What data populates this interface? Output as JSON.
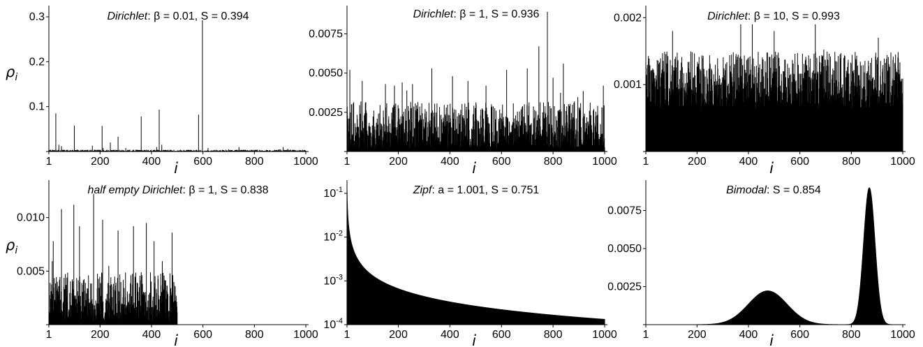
{
  "figure": {
    "ylabel": "ρ",
    "ylabel_sub": "i",
    "xlabel": "i"
  },
  "chart_data": [
    {
      "type": "bar",
      "title": "Dirichlet: β = 0.01, S = 0.394",
      "title_parts": {
        "name": "Dirichlet",
        "params": ": β = 0.01, S = 0.394"
      },
      "xlabel": "i",
      "ylabel": "ρ_i",
      "xlim": [
        1,
        1000
      ],
      "ylim": [
        0,
        0.325
      ],
      "yscale": "linear",
      "xticks": [
        1,
        200,
        400,
        600,
        800,
        1000
      ],
      "yticks": [
        0.1,
        0.2,
        0.3
      ],
      "ytick_labels": [
        "0.1",
        "0.2",
        "0.3"
      ],
      "peaks": [
        {
          "x": 28,
          "y": 0.085
        },
        {
          "x": 40,
          "y": 0.015
        },
        {
          "x": 50,
          "y": 0.012
        },
        {
          "x": 100,
          "y": 0.058
        },
        {
          "x": 170,
          "y": 0.013
        },
        {
          "x": 208,
          "y": 0.057
        },
        {
          "x": 212,
          "y": 0.008
        },
        {
          "x": 240,
          "y": 0.02
        },
        {
          "x": 270,
          "y": 0.033
        },
        {
          "x": 300,
          "y": 0.008
        },
        {
          "x": 360,
          "y": 0.078
        },
        {
          "x": 420,
          "y": 0.01
        },
        {
          "x": 430,
          "y": 0.093
        },
        {
          "x": 440,
          "y": 0.015
        },
        {
          "x": 583,
          "y": 0.082
        },
        {
          "x": 598,
          "y": 0.296
        },
        {
          "x": 620,
          "y": 0.008
        },
        {
          "x": 700,
          "y": 0.005
        },
        {
          "x": 740,
          "y": 0.01
        },
        {
          "x": 900,
          "y": 0.005
        },
        {
          "x": 912,
          "y": 0.01
        },
        {
          "x": 930,
          "y": 0.006
        }
      ],
      "noise": {
        "count": 1000,
        "baseline": 0.0,
        "amplitude": 0.004
      }
    },
    {
      "type": "bar",
      "title": "Dirichlet: β = 1, S = 0.936",
      "title_parts": {
        "name": "Dirichlet",
        "params": ": β = 1, S = 0.936"
      },
      "xlabel": "i",
      "ylabel": "ρ_i",
      "xlim": [
        1,
        1000
      ],
      "ylim": [
        0,
        0.0093
      ],
      "yscale": "linear",
      "xticks": [
        1,
        200,
        400,
        600,
        800,
        1000
      ],
      "yticks": [
        0.0025,
        0.005,
        0.0075
      ],
      "ytick_labels": [
        "0.0025",
        "0.0050",
        "0.0075"
      ],
      "peaks": [
        {
          "x": 12,
          "y": 0.0052
        },
        {
          "x": 60,
          "y": 0.0045
        },
        {
          "x": 150,
          "y": 0.0043
        },
        {
          "x": 185,
          "y": 0.0042
        },
        {
          "x": 215,
          "y": 0.0044
        },
        {
          "x": 255,
          "y": 0.0043
        },
        {
          "x": 330,
          "y": 0.0053
        },
        {
          "x": 410,
          "y": 0.0048
        },
        {
          "x": 470,
          "y": 0.0045
        },
        {
          "x": 540,
          "y": 0.0042
        },
        {
          "x": 620,
          "y": 0.0052
        },
        {
          "x": 700,
          "y": 0.0053
        },
        {
          "x": 745,
          "y": 0.0067
        },
        {
          "x": 778,
          "y": 0.0089
        },
        {
          "x": 800,
          "y": 0.0047
        },
        {
          "x": 840,
          "y": 0.0056
        },
        {
          "x": 995,
          "y": 0.0042
        }
      ],
      "noise": {
        "count": 1000,
        "baseline": 0.0002,
        "amplitude": 0.003
      }
    },
    {
      "type": "bar",
      "title": "Dirichlet: β = 10, S = 0.993",
      "title_parts": {
        "name": "Dirichlet",
        "params": ": β = 10, S = 0.993"
      },
      "xlabel": "i",
      "ylabel": "ρ_i",
      "xlim": [
        1,
        1000
      ],
      "ylim": [
        0,
        0.00218
      ],
      "yscale": "linear",
      "xticks": [
        1,
        200,
        400,
        600,
        800,
        1000
      ],
      "yticks": [
        0.001,
        0.002
      ],
      "ytick_labels": [
        "0.001",
        "0.002"
      ],
      "peaks": [
        {
          "x": 105,
          "y": 0.0018
        },
        {
          "x": 370,
          "y": 0.0019
        },
        {
          "x": 415,
          "y": 0.0019
        },
        {
          "x": 500,
          "y": 0.0018
        },
        {
          "x": 660,
          "y": 0.0019
        },
        {
          "x": 905,
          "y": 0.0017
        }
      ],
      "noise": {
        "count": 1000,
        "baseline": 0.00065,
        "amplitude": 0.00085
      }
    },
    {
      "type": "bar",
      "title": "half empty Dirichlet: β = 1, S = 0.838",
      "title_parts": {
        "name": "half empty Dirichlet",
        "params": ": β = 1, S = 0.838"
      },
      "xlabel": "i",
      "ylabel": "ρ_i",
      "xlim": [
        1,
        1000
      ],
      "ylim": [
        0,
        0.0135
      ],
      "yscale": "linear",
      "xticks": [
        1,
        200,
        400,
        600,
        800,
        1000
      ],
      "yticks": [
        0.005,
        0.01
      ],
      "ytick_labels": [
        "0.005",
        "0.010"
      ],
      "peaks": [
        {
          "x": 18,
          "y": 0.0078
        },
        {
          "x": 50,
          "y": 0.0108
        },
        {
          "x": 98,
          "y": 0.0112
        },
        {
          "x": 120,
          "y": 0.0092
        },
        {
          "x": 175,
          "y": 0.0125
        },
        {
          "x": 210,
          "y": 0.0098
        },
        {
          "x": 270,
          "y": 0.0088
        },
        {
          "x": 330,
          "y": 0.0092
        },
        {
          "x": 380,
          "y": 0.0095
        },
        {
          "x": 410,
          "y": 0.0078
        },
        {
          "x": 480,
          "y": 0.0086
        }
      ],
      "noise": {
        "count": 500,
        "baseline": 0.0004,
        "amplitude": 0.0045
      }
    },
    {
      "type": "area",
      "title": "Zipf: a = 1.001, S = 0.751",
      "title_parts": {
        "name": "Zipf",
        "params": ": a = 1.001, S = 0.751"
      },
      "xlabel": "i",
      "ylabel": "ρ_i",
      "xlim": [
        1,
        1000
      ],
      "ylim": [
        0.0001,
        0.2
      ],
      "yscale": "log",
      "xticks": [
        1,
        200,
        400,
        600,
        800,
        1000
      ],
      "yticks": [
        0.0001,
        0.001,
        0.01,
        0.1
      ],
      "ytick_labels": [
        {
          "base": "10",
          "exp": "-4"
        },
        {
          "base": "10",
          "exp": "-3"
        },
        {
          "base": "10",
          "exp": "-2"
        },
        {
          "base": "10",
          "exp": "-1"
        }
      ],
      "zipf": {
        "a": 1.001,
        "n": 1000,
        "y_at_1": 0.133
      }
    },
    {
      "type": "area",
      "title": "Bimodal: S = 0.854",
      "title_parts": {
        "name": "Bimodal",
        "params": ": S = 0.854"
      },
      "xlabel": "i",
      "ylabel": "ρ_i",
      "xlim": [
        1,
        1000
      ],
      "ylim": [
        0,
        0.0095
      ],
      "yscale": "linear",
      "xticks": [
        1,
        200,
        400,
        600,
        800,
        1000
      ],
      "yticks": [
        0.0025,
        0.005,
        0.0075
      ],
      "ytick_labels": [
        "0.0025",
        "0.0050",
        "0.0075"
      ],
      "modes": [
        {
          "center": 475,
          "sigma": 75,
          "peak": 0.00222
        },
        {
          "center": 870,
          "sigma": 22,
          "peak": 0.009
        }
      ]
    }
  ]
}
